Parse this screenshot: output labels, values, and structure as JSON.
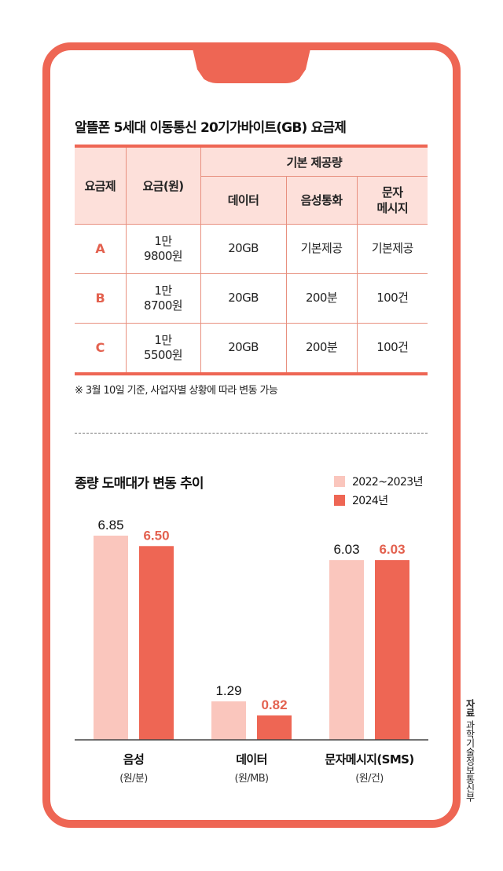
{
  "colors": {
    "frame": "#ee6654",
    "series_prev": "#fac6bd",
    "series_curr": "#ee6654",
    "header_bg": "#fde0da",
    "accent_text": "#e3614f"
  },
  "table": {
    "title": "알뜰폰 5세대 이동통신 20기가바이트(GB) 요금제",
    "headers": {
      "plan": "요금제",
      "fee": "요금(원)",
      "group": "기본 제공량",
      "data": "데이터",
      "voice": "음성통화",
      "sms_line1": "문자",
      "sms_line2": "메시지"
    },
    "rows": [
      {
        "plan": "A",
        "fee_line1": "1만",
        "fee_line2": "9800원",
        "data": "20GB",
        "voice": "기본제공",
        "sms": "기본제공"
      },
      {
        "plan": "B",
        "fee_line1": "1만",
        "fee_line2": "8700원",
        "data": "20GB",
        "voice": "200분",
        "sms": "100건"
      },
      {
        "plan": "C",
        "fee_line1": "1만",
        "fee_line2": "5500원",
        "data": "20GB",
        "voice": "200분",
        "sms": "100건"
      }
    ],
    "note": "※ 3월 10일 기준, 사업자별 상황에 따라 변동 가능"
  },
  "chart_data": {
    "type": "bar",
    "title": "종량 도매대가 변동 추이",
    "categories": [
      "음성",
      "데이터",
      "문자메시지(SMS)"
    ],
    "category_units": [
      "(원/분)",
      "(원/MB)",
      "(원/건)"
    ],
    "series": [
      {
        "name": "2022~2023년",
        "values": [
          6.85,
          1.29,
          6.03
        ],
        "labels": [
          "6.85",
          "1.29",
          "6.03"
        ]
      },
      {
        "name": "2024년",
        "values": [
          6.5,
          0.82,
          6.03
        ],
        "labels": [
          "6.50",
          "0.82",
          "6.03"
        ]
      }
    ],
    "xlabel": "",
    "ylabel": "",
    "ylim": [
      0,
      6.85
    ],
    "grid": false,
    "legend": "top-right"
  },
  "source": {
    "label": "자료",
    "org": "과학기술정보통신부"
  }
}
